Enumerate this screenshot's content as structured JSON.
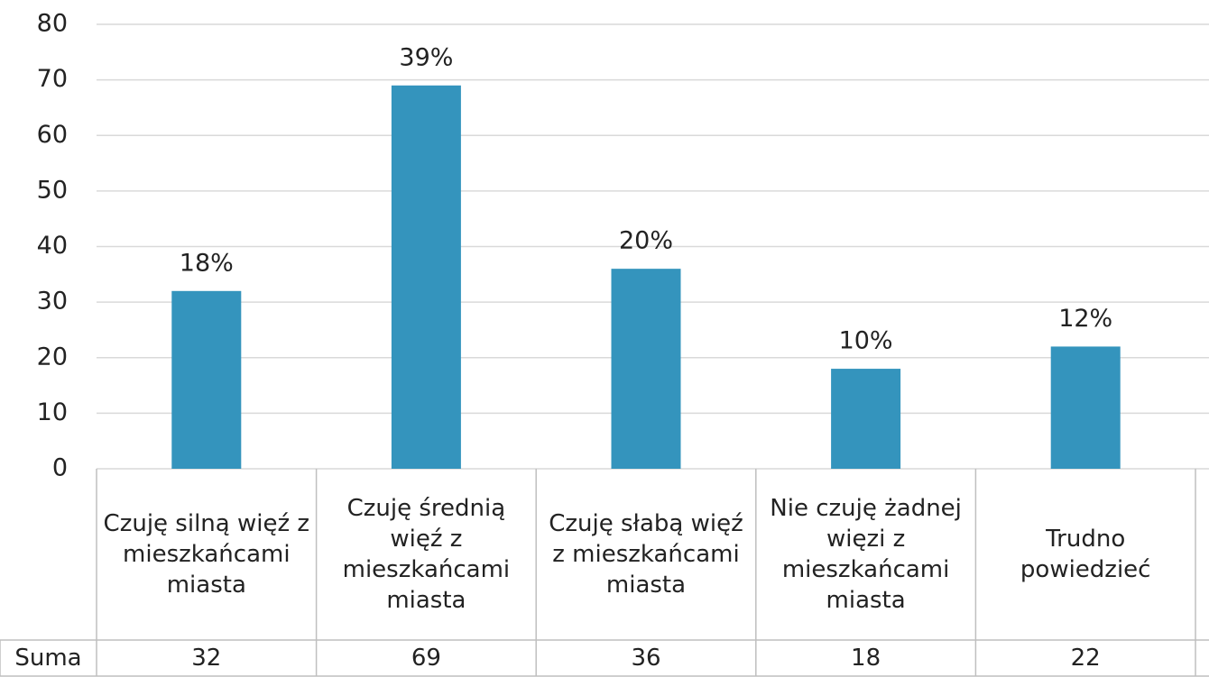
{
  "chart_data": {
    "type": "bar",
    "categories": [
      "Czuję silną więź z mieszkańcami miasta",
      "Czuję średnią więź z mieszkańcami miasta",
      "Czuję słabą więź z mieszkańcami miasta",
      "Nie czuję żadnej więzi z mieszkańcami miasta",
      "Trudno powiedzieć"
    ],
    "values": [
      32,
      69,
      36,
      18,
      22
    ],
    "value_labels": [
      "18%",
      "39%",
      "20%",
      "10%",
      "12%"
    ],
    "table_row_label": "Suma",
    "color": "#3494bd",
    "ylim": [
      0,
      80
    ],
    "yticks": [
      0,
      10,
      20,
      30,
      40,
      50,
      60,
      70,
      80
    ],
    "grid": true
  }
}
